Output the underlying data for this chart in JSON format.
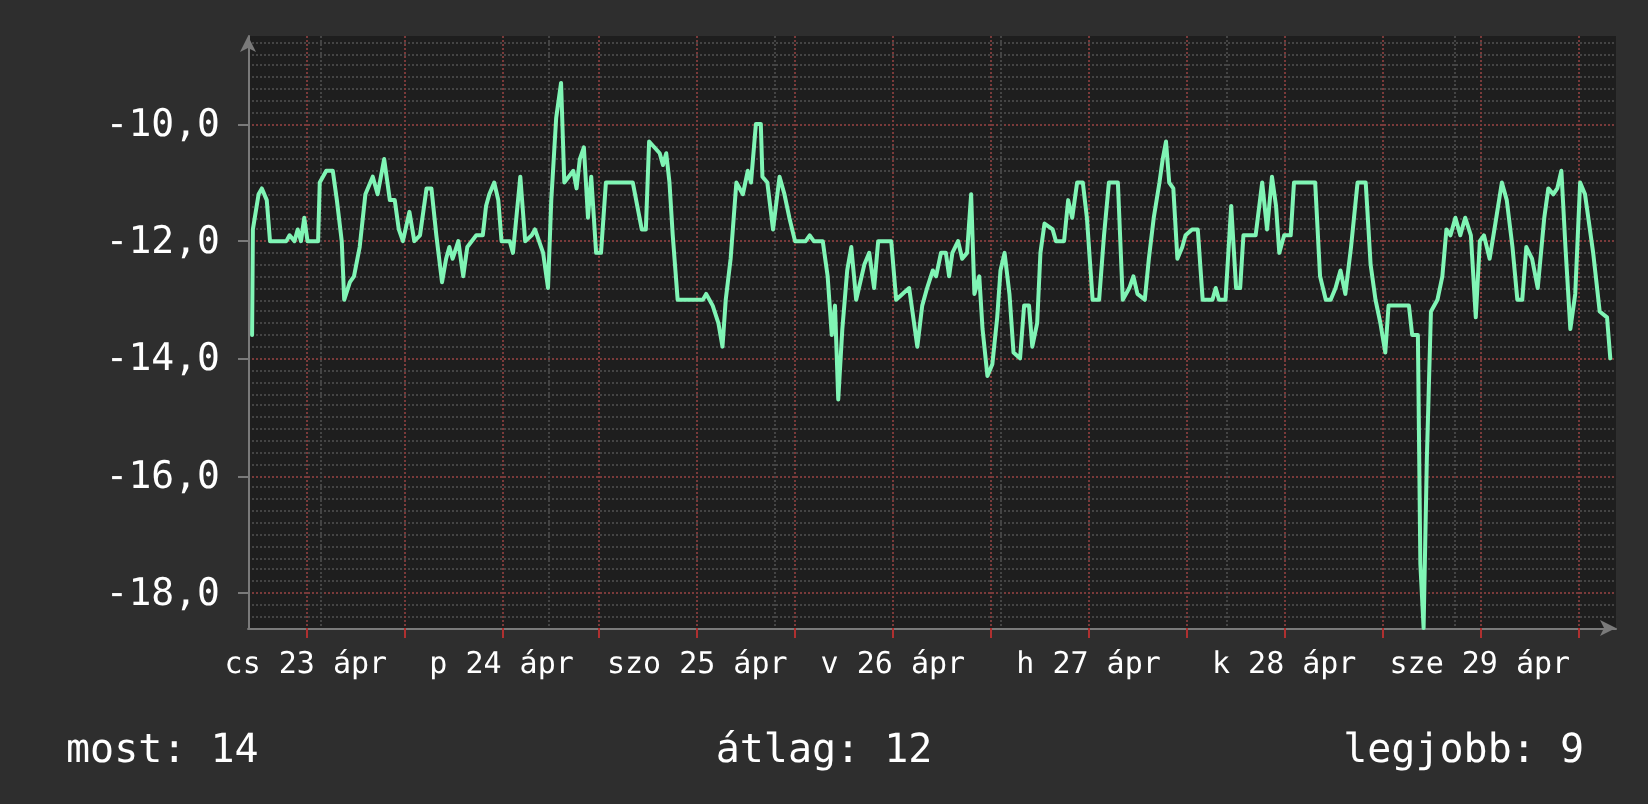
{
  "chart_data": {
    "type": "line",
    "x": [
      "--04-23T05:24",
      "--04-23T05:30",
      "--04-23T06:12",
      "--04-23T06:36",
      "--04-23T07:12",
      "--04-23T07:36",
      "--04-23T09:36",
      "--04-23T10:00",
      "--04-23T10:36",
      "--04-23T11:00",
      "--04-23T11:24",
      "--04-23T11:48",
      "--04-23T12:12",
      "--04-23T13:30",
      "--04-23T13:42",
      "--04-23T14:30",
      "--04-23T15:18",
      "--04-23T15:48",
      "--04-23T16:24",
      "--04-23T16:42",
      "--04-23T17:24",
      "--04-23T17:54",
      "--04-23T18:36",
      "--04-23T19:18",
      "--04-23T20:12",
      "--04-23T20:48",
      "--04-23T21:36",
      "--04-23T22:18",
      "--04-23T22:54",
      "--04-23T23:24",
      "--04-23T23:54",
      "--04-24T00:42",
      "--04-24T01:18",
      "--04-24T02:00",
      "--04-24T02:48",
      "--04-24T03:24",
      "--04-24T04:00",
      "--04-24T04:42",
      "--04-24T05:12",
      "--04-24T05:36",
      "--04-24T06:00",
      "--04-24T06:42",
      "--04-24T07:18",
      "--04-24T07:48",
      "--04-24T08:54",
      "--04-24T09:42",
      "--04-24T10:06",
      "--04-24T10:30",
      "--04-24T11:06",
      "--04-24T11:36",
      "--04-24T12:00",
      "--04-24T13:00",
      "--04-24T13:24",
      "--04-24T14:18",
      "--04-24T14:54",
      "--04-24T15:42",
      "--04-24T16:06",
      "--04-24T17:06",
      "--04-24T17:42",
      "--04-24T18:06",
      "--04-24T18:42",
      "--04-24T19:18",
      "--04-24T19:42",
      "--04-24T20:48",
      "--04-24T21:12",
      "--04-24T21:36",
      "--04-24T22:06",
      "--04-24T22:36",
      "--04-24T23:00",
      "--04-24T23:36",
      "--04-25T00:12",
      "--04-25T00:48",
      "--04-25T04:06",
      "--04-25T05:12",
      "--04-25T05:42",
      "--04-25T06:06",
      "--04-25T07:24",
      "--04-25T07:48",
      "--04-25T08:12",
      "--04-25T08:36",
      "--04-25T09:00",
      "--04-25T09:36",
      "--04-25T11:00",
      "--04-25T12:42",
      "--04-25T13:06",
      "--04-25T13:54",
      "--04-25T14:36",
      "--04-25T15:06",
      "--04-25T15:30",
      "--04-25T16:06",
      "--04-25T16:48",
      "--04-25T17:36",
      "--04-25T18:12",
      "--04-25T18:36",
      "--04-25T19:12",
      "--04-25T19:48",
      "--04-25T20:00",
      "--04-25T20:36",
      "--04-25T21:18",
      "--04-25T22:06",
      "--04-25T22:42",
      "--04-25T23:18",
      "--04-26T00:00",
      "--04-26T01:18",
      "--04-26T01:48",
      "--04-26T02:18",
      "--04-26T03:24",
      "--04-26T04:00",
      "--04-26T04:30",
      "--04-26T04:54",
      "--04-26T05:18",
      "--04-26T05:48",
      "--04-26T06:24",
      "--04-26T06:54",
      "--04-26T07:30",
      "--04-26T08:00",
      "--04-26T08:30",
      "--04-26T09:06",
      "--04-26T09:42",
      "--04-26T10:12",
      "--04-26T11:48",
      "--04-26T12:24",
      "--04-26T14:00",
      "--04-26T14:24",
      "--04-26T15:00",
      "--04-26T15:36",
      "--04-26T16:12",
      "--04-26T16:54",
      "--04-26T17:18",
      "--04-26T17:54",
      "--04-26T18:30",
      "--04-26T18:54",
      "--04-26T19:18",
      "--04-26T20:00",
      "--04-26T20:30",
      "--04-26T21:06",
      "--04-26T21:36",
      "--04-26T22:00",
      "--04-26T22:36",
      "--04-26T23:00",
      "--04-26T23:36",
      "--04-27T00:12",
      "--04-27T00:48",
      "--04-27T01:12",
      "--04-27T01:42",
      "--04-27T02:18",
      "--04-27T02:48",
      "--04-27T03:36",
      "--04-27T04:06",
      "--04-27T04:42",
      "--04-27T05:06",
      "--04-27T05:42",
      "--04-27T06:06",
      "--04-27T06:36",
      "--04-27T07:36",
      "--04-27T08:00",
      "--04-27T09:00",
      "--04-27T09:30",
      "--04-27T10:00",
      "--04-27T10:36",
      "--04-27T11:18",
      "--04-27T11:48",
      "--04-27T12:30",
      "--04-27T13:18",
      "--04-27T13:54",
      "--04-27T14:30",
      "--04-27T15:36",
      "--04-27T16:12",
      "--04-27T17:00",
      "--04-27T17:30",
      "--04-27T18:00",
      "--04-27T18:54",
      "--04-27T19:24",
      "--04-27T20:00",
      "--04-27T20:42",
      "--04-27T21:06",
      "--04-27T21:30",
      "--04-27T21:54",
      "--04-27T22:24",
      "--04-27T22:54",
      "--04-27T23:30",
      "--04-27T23:54",
      "--04-28T00:42",
      "--04-28T01:24",
      "--04-28T02:00",
      "--04-28T03:12",
      "--04-28T03:36",
      "--04-28T04:00",
      "--04-28T04:48",
      "--04-28T05:30",
      "--04-28T06:06",
      "--04-28T06:36",
      "--04-28T07:00",
      "--04-28T08:30",
      "--04-28T09:18",
      "--04-28T09:54",
      "--04-28T10:30",
      "--04-28T11:00",
      "--04-28T11:24",
      "--04-28T12:00",
      "--04-28T12:48",
      "--04-28T13:12",
      "--04-28T15:48",
      "--04-28T16:24",
      "--04-28T17:06",
      "--04-28T17:42",
      "--04-28T18:18",
      "--04-28T18:54",
      "--04-28T19:30",
      "--04-28T20:12",
      "--04-28T21:00",
      "--04-28T22:00",
      "--04-28T22:36",
      "--04-28T23:12",
      "--04-28T23:48",
      "--04-29T00:24",
      "--04-29T00:48",
      "--04-29T03:18",
      "--04-29T03:42",
      "--04-29T04:24",
      "--04-29T04:42",
      "--04-29T05:06",
      "--04-29T05:30",
      "--04-29T06:00",
      "--04-29T06:48",
      "--04-29T07:24",
      "--04-29T07:54",
      "--04-29T08:24",
      "--04-29T09:00",
      "--04-29T09:36",
      "--04-29T10:12",
      "--04-29T10:54",
      "--04-29T11:30",
      "--04-29T12:00",
      "--04-29T12:30",
      "--04-29T13:12",
      "--04-29T13:54",
      "--04-29T14:42",
      "--04-29T15:18",
      "--04-29T16:00",
      "--04-29T16:36",
      "--04-29T17:12",
      "--04-29T17:42",
      "--04-29T18:24",
      "--04-29T19:06",
      "--04-29T19:54",
      "--04-29T20:24",
      "--04-29T21:00",
      "--04-29T21:30",
      "--04-29T22:00",
      "--04-29T22:30",
      "--04-29T23:06",
      "--04-29T23:42",
      "--04-30T00:18",
      "--04-30T00:54",
      "--04-30T01:54",
      "--04-30T02:42",
      "--04-30T03:36",
      "--04-30T04:00"
    ],
    "series": [
      {
        "color": "#80f5b5",
        "values": [
          -13.6,
          -11.8,
          -11.2,
          -11.1,
          -11.3,
          -12.0,
          -12.0,
          -11.9,
          -12.0,
          -11.8,
          -12.0,
          -11.6,
          -12.0,
          -12.0,
          -11.0,
          -10.8,
          -10.8,
          -11.3,
          -12.0,
          -13.0,
          -12.7,
          -12.6,
          -12.1,
          -11.2,
          -10.9,
          -11.2,
          -10.6,
          -11.3,
          -11.3,
          -11.8,
          -12.0,
          -11.5,
          -12.0,
          -11.9,
          -11.1,
          -11.1,
          -11.9,
          -12.7,
          -12.3,
          -12.1,
          -12.3,
          -12.0,
          -12.6,
          -12.1,
          -11.9,
          -11.9,
          -11.4,
          -11.2,
          -11.0,
          -11.3,
          -12.0,
          -12.0,
          -12.2,
          -10.9,
          -12.0,
          -11.9,
          -11.8,
          -12.2,
          -12.8,
          -11.3,
          -9.9,
          -9.3,
          -11.0,
          -10.8,
          -11.1,
          -10.6,
          -10.4,
          -11.6,
          -10.9,
          -12.2,
          -12.2,
          -11.0,
          -11.0,
          -11.8,
          -11.8,
          -10.3,
          -10.5,
          -10.7,
          -10.5,
          -11.0,
          -11.9,
          -13.0,
          -13.0,
          -13.0,
          -12.9,
          -13.1,
          -13.4,
          -13.8,
          -13.0,
          -12.3,
          -11.0,
          -11.2,
          -10.8,
          -11.0,
          -10.0,
          -10.0,
          -10.9,
          -11.0,
          -11.8,
          -10.9,
          -11.2,
          -11.6,
          -12.0,
          -12.0,
          -11.9,
          -12.0,
          -12.0,
          -12.6,
          -13.6,
          -13.1,
          -14.7,
          -13.5,
          -12.5,
          -12.1,
          -13.0,
          -12.7,
          -12.4,
          -12.2,
          -12.8,
          -12.0,
          -12.0,
          -13.0,
          -12.8,
          -13.2,
          -13.8,
          -13.1,
          -12.8,
          -12.5,
          -12.6,
          -12.2,
          -12.2,
          -12.6,
          -12.2,
          -12.0,
          -12.3,
          -12.2,
          -11.2,
          -12.9,
          -12.6,
          -13.5,
          -14.3,
          -14.1,
          -13.3,
          -12.5,
          -12.2,
          -12.9,
          -13.9,
          -14.0,
          -13.1,
          -13.1,
          -13.8,
          -13.4,
          -12.2,
          -11.7,
          -11.8,
          -12.0,
          -12.0,
          -11.3,
          -11.6,
          -11.0,
          -11.0,
          -11.6,
          -13.0,
          -13.0,
          -11.9,
          -11.0,
          -11.0,
          -13.0,
          -12.8,
          -12.6,
          -12.9,
          -13.0,
          -12.3,
          -11.6,
          -11.0,
          -10.6,
          -10.3,
          -11.0,
          -11.1,
          -12.3,
          -12.1,
          -11.9,
          -11.8,
          -11.8,
          -13.0,
          -13.0,
          -12.8,
          -13.0,
          -13.0,
          -11.4,
          -12.8,
          -12.8,
          -11.9,
          -11.9,
          -11.0,
          -11.8,
          -10.9,
          -11.4,
          -12.2,
          -11.9,
          -11.9,
          -11.0,
          -11.0,
          -12.6,
          -13.0,
          -13.0,
          -12.8,
          -12.5,
          -12.9,
          -12.1,
          -11.0,
          -11.0,
          -12.4,
          -13.0,
          -13.4,
          -13.9,
          -13.1,
          -13.1,
          -13.6,
          -13.6,
          -17.5,
          -18.6,
          -15.7,
          -13.2,
          -13.0,
          -12.6,
          -11.8,
          -11.9,
          -11.6,
          -11.9,
          -11.6,
          -11.9,
          -13.3,
          -12.0,
          -11.9,
          -12.3,
          -11.7,
          -11.0,
          -11.3,
          -12.1,
          -13.0,
          -13.0,
          -12.1,
          -12.3,
          -12.8,
          -11.6,
          -11.1,
          -11.2,
          -11.1,
          -10.8,
          -12.1,
          -13.5,
          -12.9,
          -11.0,
          -11.2,
          -12.2,
          -13.2,
          -13.3,
          -14.0
        ]
      }
    ],
    "xlim": [
      "--04-23T04:54",
      "--04-30T04:42"
    ],
    "xticks": [
      {
        "value": "--04-23T12:00",
        "label": "cs 23 ápr"
      },
      {
        "value": "--04-24",
        "label": null
      },
      {
        "value": "--04-24T12:00",
        "label": "p 24 ápr"
      },
      {
        "value": "--04-25",
        "label": null
      },
      {
        "value": "--04-25T12:00",
        "label": "szo 25 ápr"
      },
      {
        "value": "--04-26",
        "label": null
      },
      {
        "value": "--04-26T12:00",
        "label": "v 26 ápr"
      },
      {
        "value": "--04-27",
        "label": null
      },
      {
        "value": "--04-27T12:00",
        "label": "h 27 ápr"
      },
      {
        "value": "--04-28",
        "label": null
      },
      {
        "value": "--04-28T12:00",
        "label": "k 28 ápr"
      },
      {
        "value": "--04-29",
        "label": null
      },
      {
        "value": "--04-29T12:00",
        "label": "sze 29 ápr"
      },
      {
        "value": "--04-30",
        "label": null
      }
    ],
    "ylim": [
      -18.6,
      -8.5
    ],
    "yticks": [
      {
        "value": -18,
        "label": "-18,0"
      },
      {
        "value": -16,
        "label": "-16,0"
      },
      {
        "value": -14,
        "label": "-14,0"
      },
      {
        "value": -12,
        "label": "-12,0"
      },
      {
        "value": -10,
        "label": "-10,0"
      }
    ],
    "grid": true,
    "annotations": [
      "most: 14",
      "átlag: 12",
      "legjobb: 9"
    ]
  }
}
